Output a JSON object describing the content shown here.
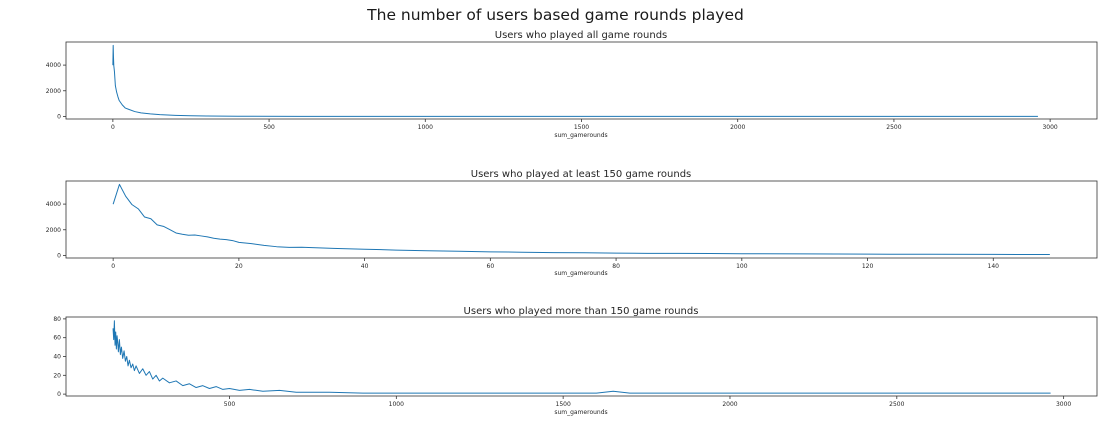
{
  "figure": {
    "suptitle": "The number of users based game rounds played",
    "line_color": "#1f77b4"
  },
  "chart_data": [
    {
      "type": "line",
      "title": "Users who played all game rounds",
      "xlabel": "sum_gamerounds",
      "ylabel": "",
      "xlim": [
        -150,
        3150
      ],
      "ylim": [
        -200,
        5800
      ],
      "xticks": [
        0,
        500,
        1000,
        1500,
        2000,
        2500,
        3000
      ],
      "yticks": [
        0,
        2000,
        4000
      ],
      "grid": false,
      "series": [
        {
          "x": [
            0,
            1,
            2,
            3,
            5,
            8,
            12,
            16,
            20,
            30,
            40,
            50,
            70,
            90,
            120,
            150,
            200,
            250,
            300,
            400,
            600,
            800,
            1000,
            1500,
            2000,
            2500,
            2961
          ],
          "y": [
            3994,
            5538,
            4606,
            3958,
            3510,
            2400,
            1900,
            1550,
            1250,
            900,
            650,
            560,
            380,
            280,
            200,
            140,
            85,
            55,
            35,
            15,
            5,
            2,
            1,
            1,
            1,
            1,
            1
          ]
        }
      ]
    },
    {
      "type": "line",
      "title": "Users who played  at least 150 game rounds",
      "xlabel": "sum_gamerounds",
      "ylabel": "",
      "xlim": [
        -7.5,
        156.5
      ],
      "ylim": [
        -200,
        5800
      ],
      "xticks": [
        0,
        20,
        40,
        60,
        80,
        100,
        120,
        140
      ],
      "yticks": [
        0,
        2000,
        4000
      ],
      "grid": false,
      "series": [
        {
          "x": [
            0,
            1,
            2,
            3,
            4,
            5,
            6,
            7,
            8,
            9,
            10,
            11,
            12,
            13,
            14,
            15,
            16,
            17,
            18,
            19,
            20,
            22,
            24,
            26,
            28,
            30,
            35,
            40,
            45,
            50,
            55,
            60,
            65,
            70,
            75,
            80,
            85,
            90,
            95,
            100,
            110,
            120,
            130,
            140,
            149
          ],
          "y": [
            3994,
            5538,
            4606,
            3958,
            3629,
            2992,
            2861,
            2379,
            2267,
            2013,
            1752,
            1654,
            1570,
            1594,
            1519,
            1446,
            1342,
            1269,
            1228,
            1158,
            1015,
            917,
            787,
            681,
            631,
            642,
            553,
            485,
            418,
            368,
            329,
            280,
            253,
            221,
            214,
            181,
            165,
            156,
            146,
            133,
            117,
            101,
            90,
            80,
            70
          ]
        }
      ]
    },
    {
      "type": "line",
      "title": "Users who played  more than 150 game rounds",
      "xlabel": "sum_gamerounds",
      "ylabel": "",
      "xlim": [
        10,
        3100
      ],
      "ylim": [
        -2,
        82
      ],
      "xticks": [
        500,
        1000,
        1500,
        2000,
        2500,
        3000
      ],
      "yticks": [
        0,
        20,
        40,
        60,
        80
      ],
      "grid": false,
      "series": [
        {
          "x": [
            151,
            153,
            155,
            157,
            159,
            161,
            163,
            165,
            167,
            170,
            173,
            176,
            180,
            184,
            188,
            192,
            196,
            200,
            205,
            210,
            215,
            220,
            230,
            240,
            250,
            260,
            270,
            280,
            290,
            300,
            320,
            340,
            360,
            380,
            400,
            420,
            440,
            460,
            480,
            500,
            530,
            560,
            600,
            650,
            700,
            800,
            900,
            1000,
            1200,
            1400,
            1600,
            1650,
            1700,
            2000,
            2500,
            2961
          ],
          "y": [
            70,
            58,
            78,
            52,
            66,
            48,
            62,
            55,
            45,
            58,
            42,
            50,
            38,
            46,
            35,
            40,
            30,
            36,
            28,
            32,
            25,
            30,
            22,
            27,
            20,
            24,
            16,
            20,
            14,
            17,
            12,
            14,
            9,
            11,
            7,
            9,
            6,
            8,
            5,
            6,
            4,
            5,
            3,
            4,
            2,
            2,
            1,
            1,
            1,
            1,
            1,
            3,
            1,
            1,
            1,
            1
          ]
        }
      ]
    }
  ]
}
